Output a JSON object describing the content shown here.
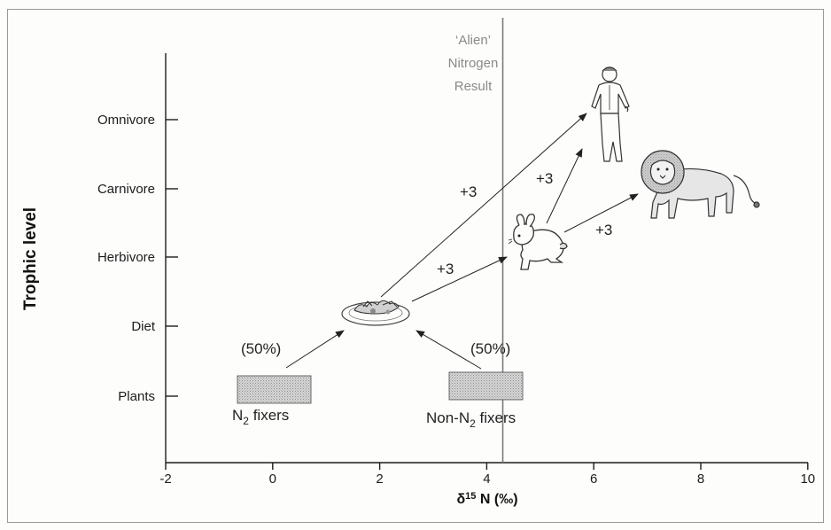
{
  "y_axis": {
    "title": "Trophic level",
    "levels": [
      "Plants",
      "Diet",
      "Herbivore",
      "Carnivore",
      "Omnivore"
    ]
  },
  "x_axis": {
    "title": "δ15N (‰)",
    "ticks": [
      "-2",
      "0",
      "2",
      "4",
      "6",
      "8",
      "10"
    ]
  },
  "alien_line": {
    "x_value": 4.3,
    "label_lines": [
      "‘Alien’",
      "Nitrogen",
      "Result"
    ]
  },
  "nodes": {
    "n2_fixers": {
      "label_main": "N",
      "label_sub": "2",
      "label_rest": " fixers",
      "share": "(50%)"
    },
    "non_n2_fixers": {
      "label_main": "Non-N",
      "label_sub": "2",
      "label_rest": " fixers",
      "share": "(50%)"
    }
  },
  "increments": {
    "diet_to_herbivore": "+3",
    "diet_to_omnivore": "+3",
    "herbivore_to_omnivore": "+3",
    "herbivore_to_carnivore": "+3"
  },
  "icons": {
    "diet": "food-plate-icon",
    "herbivore": "rabbit-icon",
    "carnivore": "lion-icon",
    "omnivore": "human-icon"
  },
  "colors": {
    "box_fill": "#c8c8c8",
    "alien_line": "#7a7a7a",
    "axis": "#1c1c1c"
  }
}
